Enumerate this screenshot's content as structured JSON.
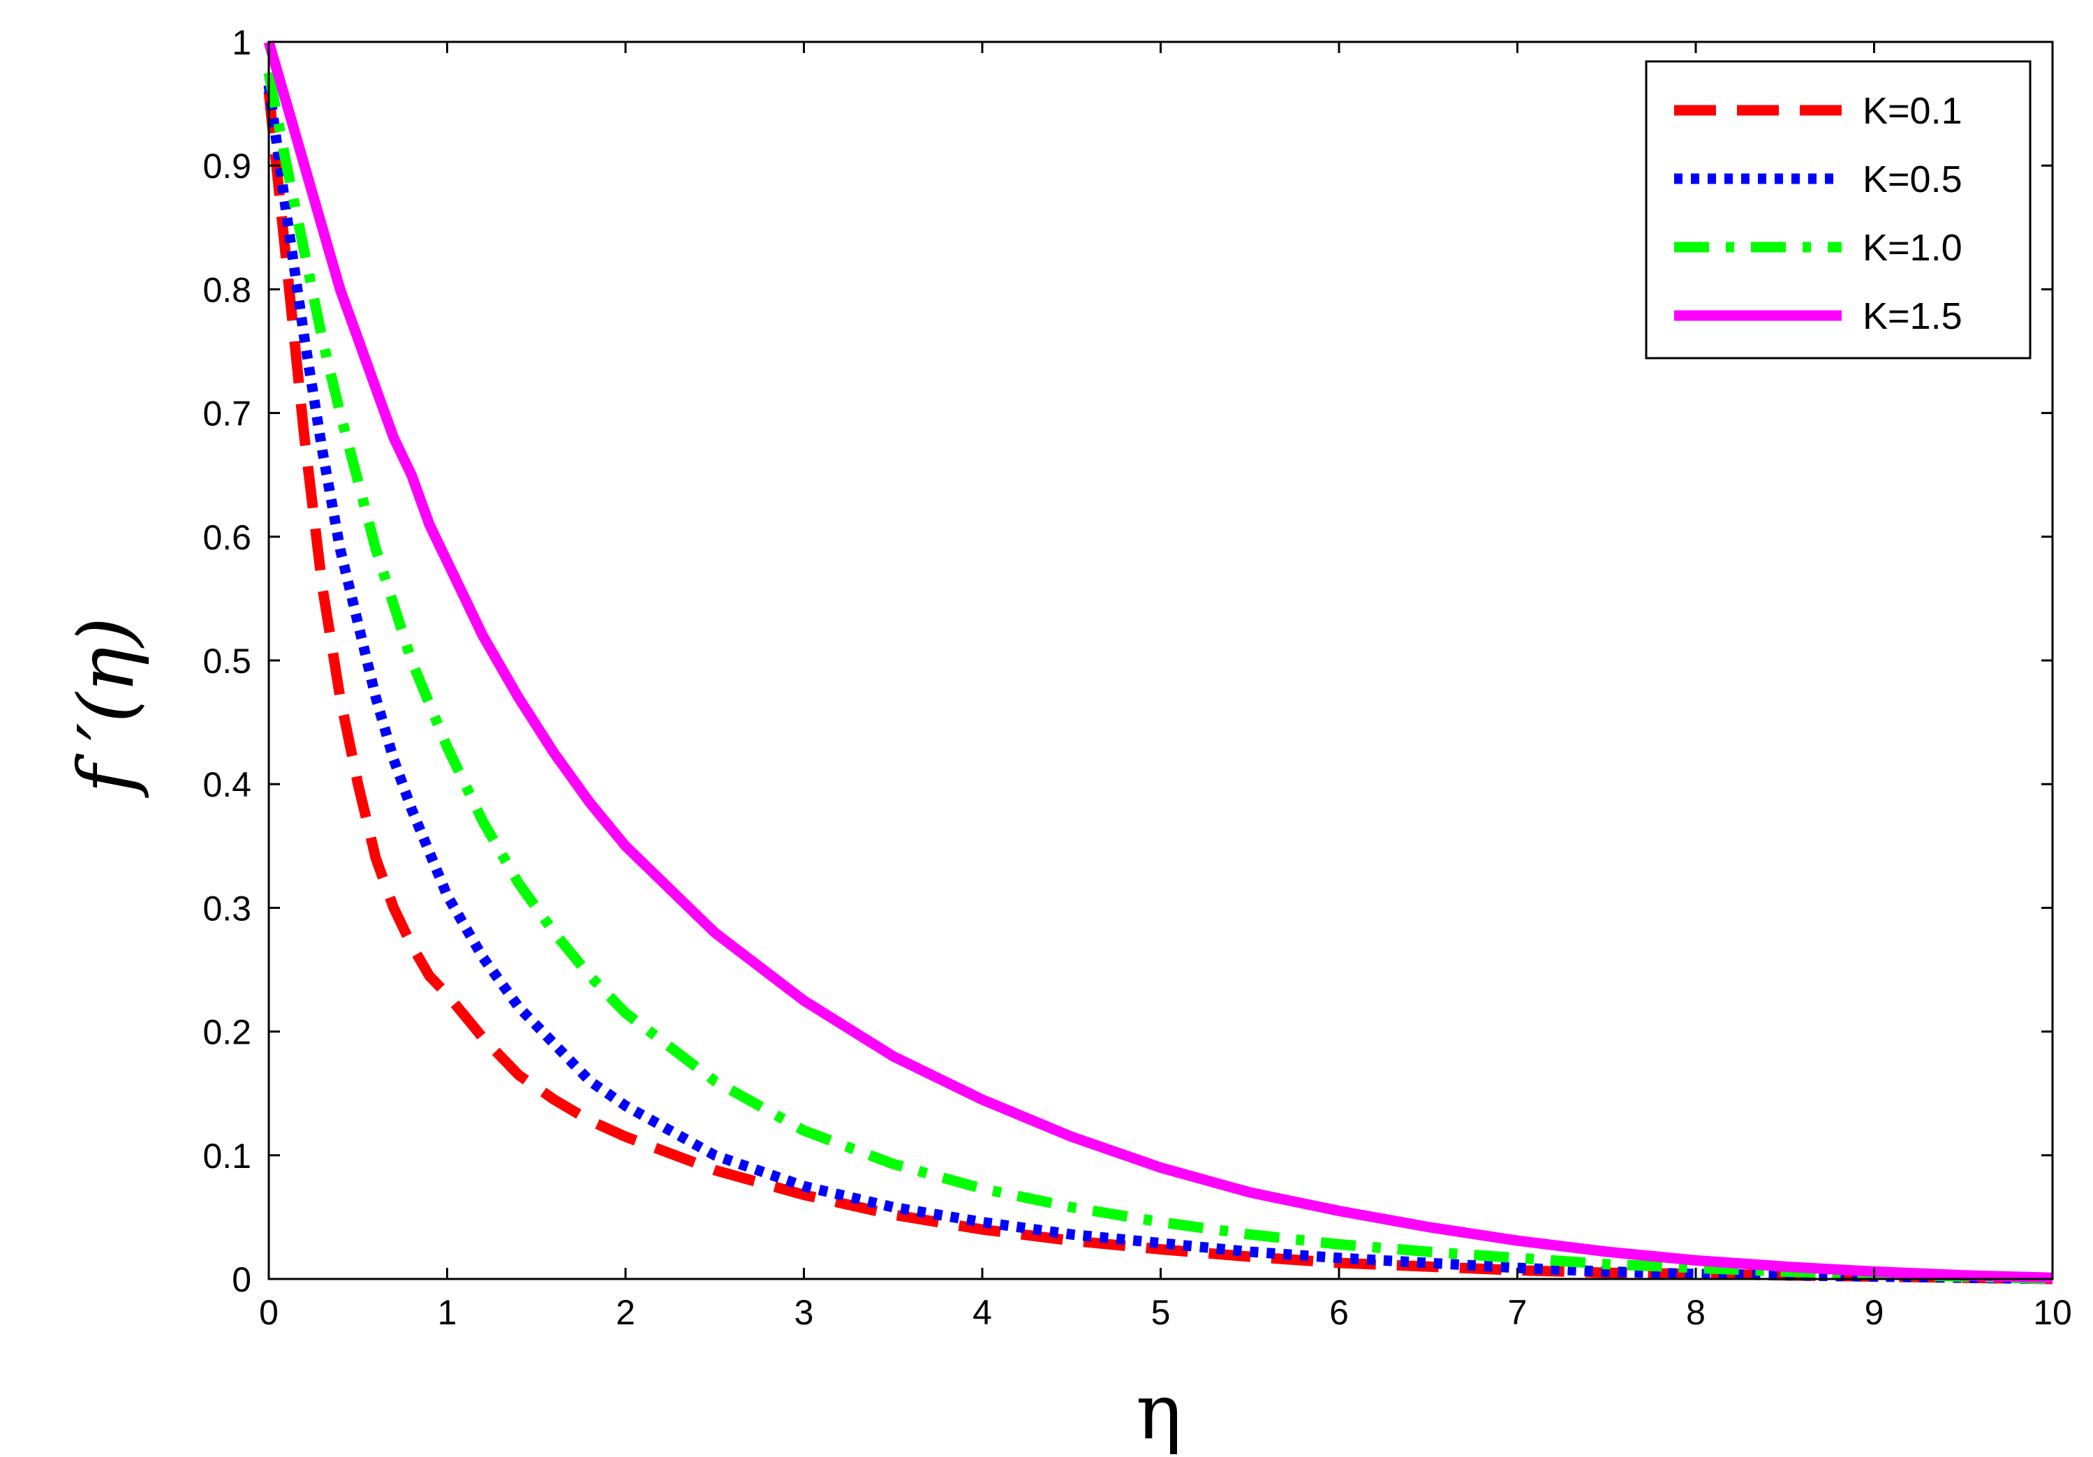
{
  "chart_data": {
    "type": "line",
    "title": "",
    "xlabel": "η",
    "ylabel": "f ′(η)",
    "xlim": [
      0,
      10
    ],
    "ylim": [
      0,
      1
    ],
    "x_ticks": [
      "0",
      "1",
      "2",
      "3",
      "4",
      "5",
      "6",
      "7",
      "8",
      "9",
      "10"
    ],
    "y_ticks": [
      "0",
      "0.1",
      "0.2",
      "0.3",
      "0.4",
      "0.5",
      "0.6",
      "0.7",
      "0.8",
      "0.9",
      "1"
    ],
    "grid": false,
    "legend_position": "top-right",
    "x": [
      0,
      0.1,
      0.2,
      0.3,
      0.4,
      0.5,
      0.6,
      0.7,
      0.8,
      0.9,
      1.0,
      1.2,
      1.4,
      1.6,
      1.8,
      2.0,
      2.5,
      3.0,
      3.5,
      4.0,
      4.5,
      5.0,
      5.5,
      6.0,
      6.5,
      7.0,
      7.5,
      8.0,
      8.5,
      9.0,
      9.5,
      10.0
    ],
    "series": [
      {
        "name": "K=0.1",
        "color": "#ff0000",
        "style": "dashed",
        "values": [
          0.96,
          0.82,
          0.68,
          0.56,
          0.47,
          0.4,
          0.34,
          0.3,
          0.27,
          0.245,
          0.23,
          0.195,
          0.165,
          0.145,
          0.128,
          0.115,
          0.088,
          0.068,
          0.052,
          0.04,
          0.031,
          0.024,
          0.018,
          0.013,
          0.01,
          0.007,
          0.005,
          0.004,
          0.003,
          0.002,
          0.001,
          0.0
        ]
      },
      {
        "name": "K=0.5",
        "color": "#0000ff",
        "style": "dotted",
        "values": [
          0.965,
          0.86,
          0.76,
          0.67,
          0.59,
          0.53,
          0.47,
          0.42,
          0.38,
          0.345,
          0.31,
          0.26,
          0.22,
          0.19,
          0.16,
          0.14,
          0.1,
          0.075,
          0.058,
          0.046,
          0.036,
          0.029,
          0.022,
          0.017,
          0.013,
          0.009,
          0.006,
          0.004,
          0.003,
          0.002,
          0.001,
          0.0
        ]
      },
      {
        "name": "K=1.0",
        "color": "#00ff00",
        "style": "dashdot",
        "values": [
          0.975,
          0.9,
          0.83,
          0.76,
          0.7,
          0.645,
          0.59,
          0.545,
          0.5,
          0.465,
          0.43,
          0.37,
          0.32,
          0.28,
          0.245,
          0.215,
          0.16,
          0.12,
          0.093,
          0.073,
          0.058,
          0.046,
          0.036,
          0.028,
          0.022,
          0.017,
          0.012,
          0.009,
          0.006,
          0.004,
          0.002,
          0.0
        ]
      },
      {
        "name": "K=1.5",
        "color": "#ff00ff",
        "style": "solid",
        "values": [
          1.0,
          0.95,
          0.9,
          0.85,
          0.8,
          0.76,
          0.72,
          0.68,
          0.65,
          0.61,
          0.58,
          0.52,
          0.47,
          0.425,
          0.385,
          0.35,
          0.28,
          0.225,
          0.18,
          0.145,
          0.115,
          0.09,
          0.07,
          0.055,
          0.042,
          0.031,
          0.022,
          0.015,
          0.01,
          0.006,
          0.003,
          0.001
        ]
      }
    ]
  }
}
